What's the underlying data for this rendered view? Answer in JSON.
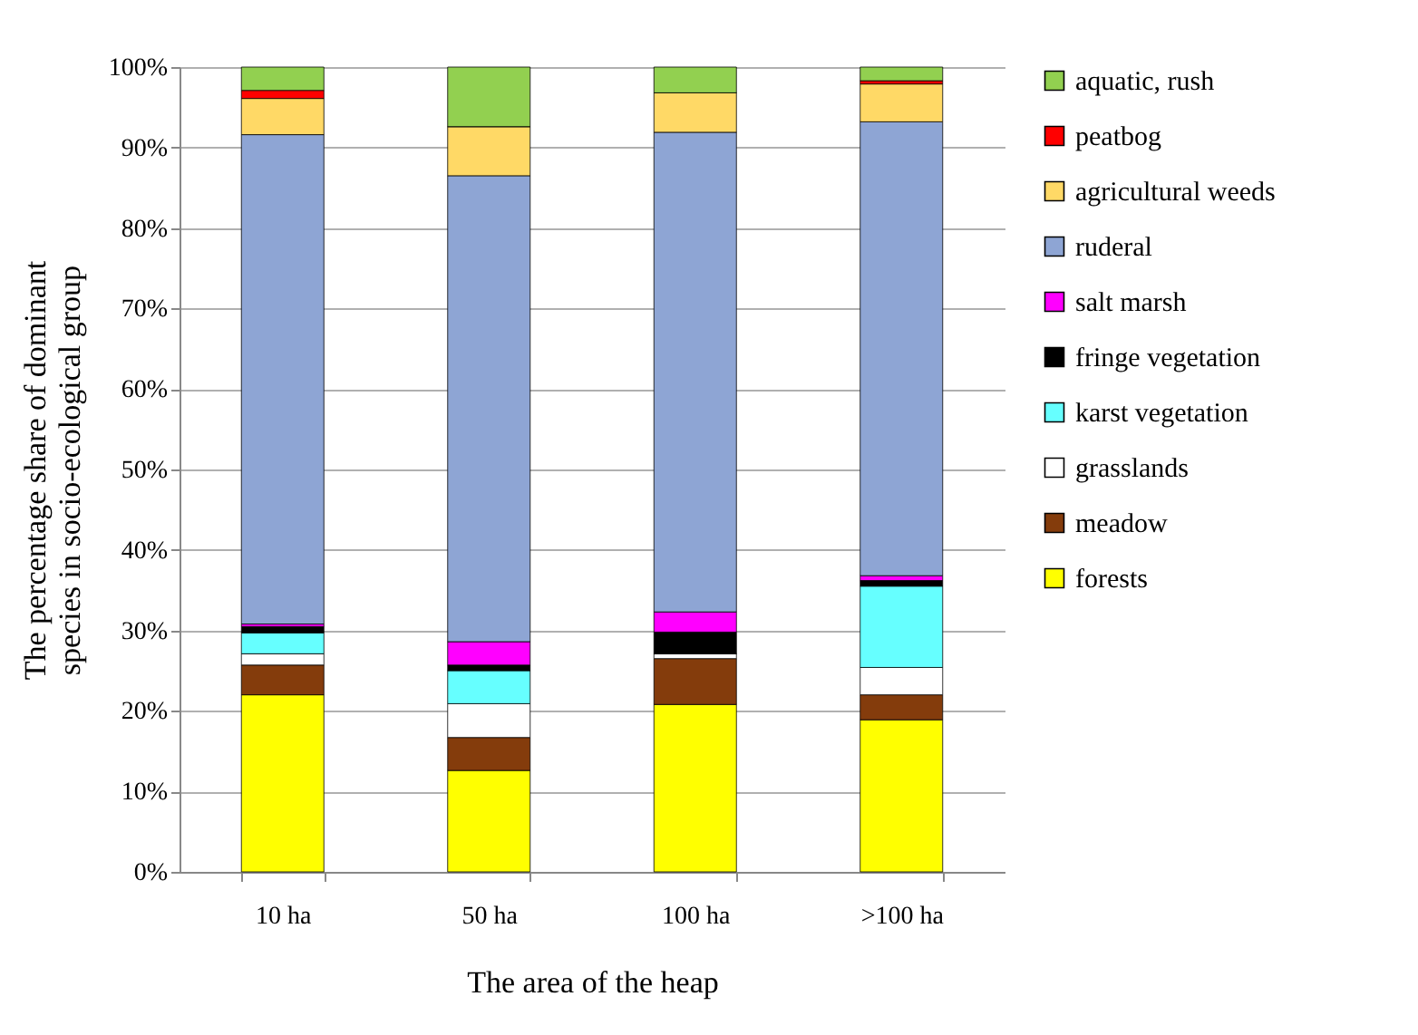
{
  "chart_data": {
    "type": "bar",
    "stacked": true,
    "xlabel": "The area of the heap",
    "ylabel": "The percentage share of dominant species in socio-ecological group",
    "categories": [
      "10 ha",
      "50 ha",
      "100 ha",
      ">100 ha"
    ],
    "series": [
      {
        "name": "forests",
        "color": "#ffff00",
        "values": [
          22.0,
          12.6,
          20.8,
          18.9
        ]
      },
      {
        "name": "meadow",
        "color": "#843c0c",
        "values": [
          3.7,
          4.1,
          5.7,
          3.1
        ]
      },
      {
        "name": "grasslands",
        "color": "#ffffff",
        "values": [
          1.4,
          4.2,
          0.6,
          3.4
        ]
      },
      {
        "name": "karst vegetation",
        "color": "#66ffff",
        "values": [
          2.6,
          4.1,
          0,
          10.1
        ]
      },
      {
        "name": "fringe vegetation",
        "color": "#000000",
        "values": [
          0.8,
          0.7,
          2.7,
          0.7
        ]
      },
      {
        "name": "salt marsh",
        "color": "#ff00ff",
        "values": [
          0.3,
          2.9,
          2.5,
          0.6
        ]
      },
      {
        "name": "ruderal",
        "color": "#8ea5d4",
        "values": [
          60.8,
          57.9,
          59.6,
          56.4
        ]
      },
      {
        "name": "agricultural weeds",
        "color": "#ffd966",
        "values": [
          4.5,
          6.1,
          4.9,
          4.7
        ]
      },
      {
        "name": "peatbog",
        "color": "#ff0000",
        "values": [
          1.0,
          0,
          0,
          0.4
        ]
      },
      {
        "name": "aquatic, rush",
        "color": "#92d050",
        "values": [
          2.9,
          7.4,
          3.2,
          1.7
        ]
      }
    ],
    "ylim": [
      0,
      100
    ],
    "yticks": [
      {
        "value": 0,
        "label": "0%"
      },
      {
        "value": 10,
        "label": "10%"
      },
      {
        "value": 20,
        "label": "20%"
      },
      {
        "value": 30,
        "label": "30%"
      },
      {
        "value": 40,
        "label": "40%"
      },
      {
        "value": 50,
        "label": "50%"
      },
      {
        "value": 60,
        "label": "60%"
      },
      {
        "value": 70,
        "label": "70%"
      },
      {
        "value": 80,
        "label": "80%"
      },
      {
        "value": 90,
        "label": "90%"
      },
      {
        "value": 100,
        "label": "100%"
      }
    ],
    "grid": "y",
    "legend": "right"
  }
}
